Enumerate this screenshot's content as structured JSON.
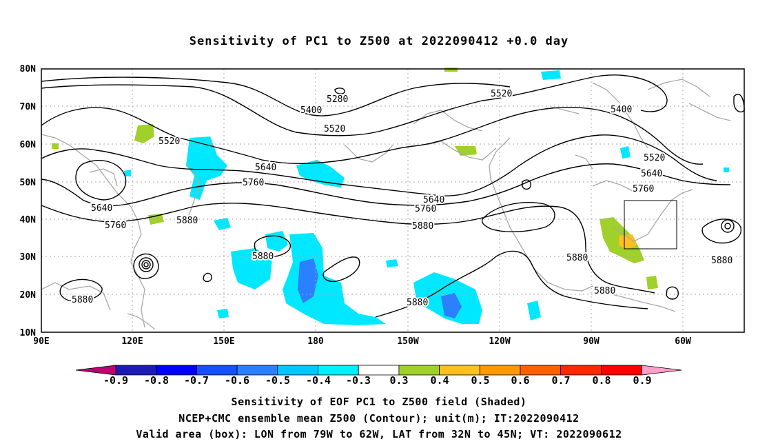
{
  "title": "Sensitivity of PC1 to Z500 at 2022090412 +0.0 day",
  "axes": {
    "lat_labels": [
      "80N",
      "70N",
      "60N",
      "50N",
      "40N",
      "30N",
      "20N",
      "10N"
    ],
    "lon_labels": [
      "90E",
      "120E",
      "150E",
      "180",
      "150W",
      "120W",
      "90W",
      "60W"
    ]
  },
  "contours": {
    "levels": [
      "5280",
      "5400",
      "5520",
      "5640",
      "5760",
      "5880"
    ],
    "labels": [
      {
        "text": "5280"
      },
      {
        "text": "5400"
      },
      {
        "text": "5520"
      },
      {
        "text": "5520"
      },
      {
        "text": "5520"
      },
      {
        "text": "5400"
      },
      {
        "text": "5520"
      },
      {
        "text": "5640"
      },
      {
        "text": "5760"
      },
      {
        "text": "5640"
      },
      {
        "text": "5760"
      },
      {
        "text": "5640"
      },
      {
        "text": "5760"
      },
      {
        "text": "5640"
      },
      {
        "text": "5760"
      },
      {
        "text": "5880"
      },
      {
        "text": "5880"
      },
      {
        "text": "5880"
      },
      {
        "text": "5880"
      },
      {
        "text": "5880"
      },
      {
        "text": "5880"
      },
      {
        "text": "5880"
      }
    ]
  },
  "valid_box": {
    "lon_from": "79W",
    "lon_to": "62W",
    "lat_from": "32N",
    "lat_to": "45N"
  },
  "colorbar": {
    "labels": [
      "-0.9",
      "-0.8",
      "-0.7",
      "-0.6",
      "-0.5",
      "-0.4",
      "-0.3",
      "0.3",
      "0.4",
      "0.5",
      "0.6",
      "0.7",
      "0.8",
      "0.9"
    ],
    "colors": [
      "#c00070",
      "#1c1cb4",
      "#0000ff",
      "#1450ff",
      "#2b80ff",
      "#00c8ff",
      "#00f0ff",
      "#ffffff",
      "#a0d02a",
      "#ffc020",
      "#ff9a00",
      "#ff6000",
      "#ff2800",
      "#ff0000",
      "#ffa0c8"
    ]
  },
  "captions": {
    "line1": "Sensitivity of EOF PC1 to Z500 field (Shaded)",
    "line2": "NCEP+CMC ensemble mean Z500 (Contour); unit(m); IT:2022090412",
    "line3": "Valid area (box): LON from 79W to 62W, LAT from 32N to 45N; VT: 2022090612"
  },
  "colors": {
    "contour": "#000000",
    "coast": "#a8a8a8",
    "grid": "#a8a8a8",
    "positive_shade": "#a0d02a",
    "negative_shade": "#00e8ff",
    "negative_strong": "#2b80ff"
  }
}
